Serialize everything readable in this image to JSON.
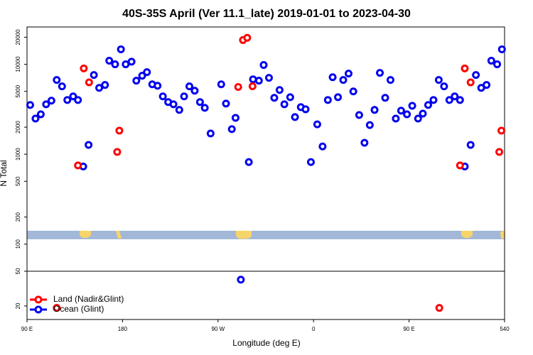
{
  "chart_data": [
    {
      "type": "scatter",
      "title": "40S-35S April (Ver 11.1_late)   2019-01-01 to 2023-04-30",
      "y_label": "N Total",
      "log_y": true,
      "xlim": [
        90,
        540
      ],
      "ylim": [
        50,
        26000
      ],
      "yticks": [
        50,
        100,
        200,
        500,
        1000,
        2000,
        5000,
        10000,
        20000
      ],
      "series": [
        {
          "color": "#ff0000",
          "x": [
            138,
            143.5,
            148.5,
            175,
            177,
            289,
            293.5,
            297.5,
            302.5,
            498,
            502.5,
            508,
            535,
            537
          ],
          "values": [
            750,
            9000,
            6300,
            1060,
            1830,
            5600,
            18600,
            19700,
            5700,
            750,
            9000,
            6300,
            1060,
            1830
          ]
        },
        {
          "color": "#0000ee",
          "x": [
            93,
            98,
            103,
            108,
            113,
            118,
            123,
            128,
            133.5,
            138,
            143,
            148,
            153,
            158,
            163.5,
            167.5,
            173,
            178.5,
            183,
            188.5,
            193,
            198.5,
            203,
            208,
            213,
            218,
            223,
            228,
            233.5,
            238,
            243,
            248,
            253,
            257.5,
            263,
            273,
            277.5,
            283,
            286.5,
            299,
            303,
            308.5,
            313,
            318,
            323,
            328,
            332.5,
            338,
            342.5,
            348,
            352.5,
            357.5,
            363.5,
            368.5,
            373.5,
            378,
            383,
            388,
            393,
            397.5,
            403,
            408,
            413,
            417.5,
            422.5,
            427.5,
            432.5,
            437.5,
            442.5,
            448,
            453,
            458.5,
            463,
            468,
            473,
            478,
            483,
            488,
            493,
            498,
            502.5,
            508,
            513,
            518,
            523,
            527.5,
            533,
            537.5
          ],
          "values": [
            3530,
            2490,
            2780,
            3590,
            3940,
            6690,
            5680,
            4010,
            4400,
            4010,
            730,
            1270,
            7600,
            5470,
            5890,
            10960,
            10000,
            14680,
            10000,
            10700,
            6570,
            7460,
            8180,
            5990,
            5780,
            4400,
            3800,
            3590,
            3110,
            4400,
            5680,
            5090,
            3800,
            3280,
            1700,
            5990,
            3660,
            1900,
            2540,
            818,
            6810,
            6570,
            9820,
            7070,
            4240,
            5180,
            3590,
            4310,
            2590,
            3340,
            3160,
            818,
            2150,
            1220,
            4010,
            7190,
            4310,
            6690,
            7890,
            4990,
            2730,
            1340,
            2110,
            3110,
            8030,
            4240,
            6690,
            2490,
            3050,
            2780,
            3460,
            2490,
            2830,
            3530,
            4010,
            6690,
            5680,
            4010,
            4400,
            4010,
            730,
            1270,
            7600,
            5470,
            5890,
            10960,
            10000,
            14680
          ]
        }
      ]
    },
    {
      "type": "scatter",
      "x_label": "Longitude (deg E)",
      "log_y": true,
      "legend": "bottom-left",
      "xlim": [
        90,
        540
      ],
      "ylim": [
        14,
        50
      ],
      "yticks": [
        20
      ],
      "xticks": [
        {
          "value": 90,
          "label": "90 E"
        },
        180,
        {
          "value": 270,
          "label": "90 W"
        },
        {
          "value": 360,
          "label": "0"
        },
        {
          "value": 450,
          "label": "90 E"
        },
        540
      ],
      "series": [
        {
          "name": "Land (Nadir&Glint)",
          "color": "#ff0000",
          "x": [
            118,
            478.5
          ],
          "values": [
            19,
            19
          ]
        },
        {
          "name": "Ocean (Glint)",
          "color": "#0000ee",
          "x": [
            291.5
          ],
          "values": [
            40
          ]
        }
      ]
    }
  ]
}
